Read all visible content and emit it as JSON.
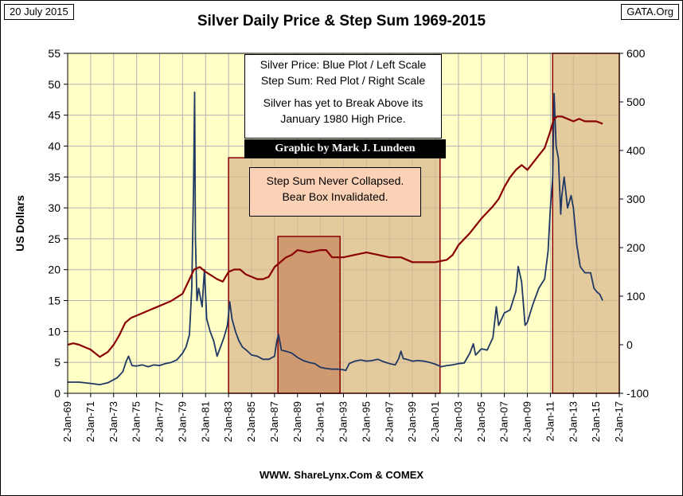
{
  "header": {
    "date_label": "20 July 2015",
    "source_label": "GATA.Org",
    "title": "Silver Daily Price & Step Sum 1969-2015"
  },
  "notes": {
    "legend_line1": "Silver Price: Blue Plot / Left Scale",
    "legend_line2": "Step Sum: Red Plot / Right Scale",
    "comment_line1": "Silver has yet to Break Above its",
    "comment_line2": "January 1980 High Price.",
    "credit": "Graphic by Mark J. Lundeen",
    "step_line1": "Step Sum Never Collapsed.",
    "step_line2": "Bear Box Invalidated."
  },
  "footer": {
    "source": "WWW. ShareLynx.Com & COMEX"
  },
  "colors": {
    "plot_bg": "#ffffc6",
    "grid": "#b4b4b4",
    "price": "#1f3864",
    "stepsum": "#8b0000",
    "bear_box_fill": "#d9b98f",
    "bear_box_edge": "#8b0000",
    "inner_box_fill": "#c98a63"
  },
  "chart_data": {
    "type": "line",
    "title": "Silver Daily Price & Step Sum 1969-2015",
    "xlabel": "",
    "ylabel": "US Dollars",
    "xlim": [
      1969,
      2017
    ],
    "ylim": [
      0,
      55
    ],
    "y2lim": [
      -100,
      600
    ],
    "y_ticks": [
      "0",
      "5",
      "10",
      "15",
      "20",
      "25",
      "30",
      "35",
      "40",
      "45",
      "50",
      "55"
    ],
    "y2_ticks": [
      "-100",
      "0",
      "100",
      "200",
      "300",
      "400",
      "500",
      "600"
    ],
    "x_ticks": [
      "2-Jan-69",
      "2-Jan-71",
      "2-Jan-73",
      "2-Jan-75",
      "2-Jan-77",
      "2-Jan-79",
      "2-Jan-81",
      "2-Jan-83",
      "2-Jan-85",
      "2-Jan-87",
      "2-Jan-89",
      "2-Jan-91",
      "2-Jan-93",
      "2-Jan-95",
      "2-Jan-97",
      "2-Jan-99",
      "2-Jan-01",
      "2-Jan-03",
      "2-Jan-05",
      "2-Jan-07",
      "2-Jan-09",
      "2-Jan-11",
      "2-Jan-13",
      "2-Jan-15",
      "2-Jan-17"
    ],
    "grid": true,
    "bear_boxes": [
      {
        "x_start": 1983.0,
        "x_end": 2001.4,
        "y2_top": 385
      },
      {
        "x_start": 2011.2,
        "x_end": 2017.0,
        "y2_top": 600
      }
    ],
    "inner_box": {
      "x_start": 1987.3,
      "x_end": 1992.7,
      "y2_top": 223
    },
    "series": [
      {
        "name": "Silver Price",
        "axis": "left",
        "color": "#1f3864",
        "x": [
          1969.0,
          1970.0,
          1971.0,
          1971.8,
          1972.5,
          1973.3,
          1973.8,
          1974.1,
          1974.3,
          1974.6,
          1975.0,
          1975.5,
          1976.0,
          1976.5,
          1977.0,
          1977.5,
          1978.0,
          1978.5,
          1979.0,
          1979.3,
          1979.6,
          1979.8,
          1979.95,
          1980.05,
          1980.12,
          1980.25,
          1980.4,
          1980.7,
          1980.9,
          1981.1,
          1981.4,
          1981.7,
          1982.0,
          1982.3,
          1982.6,
          1982.9,
          1983.1,
          1983.3,
          1983.6,
          1983.9,
          1984.2,
          1984.6,
          1985.0,
          1985.5,
          1986.0,
          1986.5,
          1987.0,
          1987.2,
          1987.35,
          1987.6,
          1988.0,
          1988.5,
          1989.0,
          1989.5,
          1990.0,
          1990.5,
          1991.0,
          1991.5,
          1992.0,
          1992.5,
          1993.0,
          1993.2,
          1993.5,
          1994.0,
          1994.5,
          1995.0,
          1995.5,
          1996.0,
          1996.5,
          1997.0,
          1997.5,
          1997.8,
          1998.0,
          1998.2,
          1998.5,
          1999.0,
          1999.5,
          2000.0,
          2000.5,
          2001.0,
          2001.5,
          2002.0,
          2002.5,
          2003.0,
          2003.5,
          2004.0,
          2004.3,
          2004.5,
          2005.0,
          2005.5,
          2006.0,
          2006.3,
          2006.5,
          2007.0,
          2007.5,
          2008.0,
          2008.2,
          2008.5,
          2008.8,
          2009.0,
          2009.5,
          2010.0,
          2010.5,
          2010.8,
          2011.0,
          2011.2,
          2011.33,
          2011.5,
          2011.7,
          2011.9,
          2012.0,
          2012.2,
          2012.5,
          2012.8,
          2013.0,
          2013.3,
          2013.6,
          2014.0,
          2014.5,
          2014.8,
          2015.0,
          2015.3,
          2015.55
        ],
        "values": [
          1.8,
          1.8,
          1.6,
          1.4,
          1.7,
          2.5,
          3.5,
          5.2,
          6.0,
          4.5,
          4.4,
          4.6,
          4.3,
          4.6,
          4.5,
          4.8,
          5.0,
          5.4,
          6.5,
          7.5,
          9.5,
          17,
          33,
          48.7,
          25,
          15,
          17,
          14,
          20,
          12,
          10,
          8.5,
          6,
          7.5,
          9,
          11,
          14.8,
          12,
          10,
          8.5,
          7.5,
          6.9,
          6.2,
          6.0,
          5.5,
          5.5,
          6.0,
          8.5,
          9.5,
          7.0,
          6.8,
          6.5,
          5.8,
          5.3,
          5.0,
          4.8,
          4.2,
          4.0,
          3.9,
          3.9,
          3.8,
          3.7,
          4.8,
          5.2,
          5.4,
          5.2,
          5.3,
          5.5,
          5.1,
          4.8,
          4.6,
          5.6,
          6.8,
          5.6,
          5.5,
          5.2,
          5.3,
          5.2,
          5.0,
          4.7,
          4.3,
          4.5,
          4.6,
          4.8,
          4.9,
          6.5,
          8.0,
          6.2,
          7.2,
          7.0,
          9.0,
          14,
          11,
          13,
          13.5,
          16.5,
          20.5,
          18,
          11,
          11.5,
          14.5,
          17,
          18.5,
          23,
          30,
          35,
          48.5,
          40,
          38,
          29,
          32,
          35,
          30,
          32,
          30,
          24,
          20.5,
          19.5,
          19.5,
          17,
          16.5,
          16.0,
          15.0
        ]
      },
      {
        "name": "Step Sum",
        "axis": "right",
        "color": "#8b0000",
        "x": [
          1969.0,
          1969.5,
          1970.0,
          1970.5,
          1971.0,
          1971.8,
          1972.5,
          1973.0,
          1973.5,
          1974.0,
          1974.5,
          1975.0,
          1975.5,
          1976.0,
          1977.0,
          1978.0,
          1979.0,
          1979.5,
          1980.0,
          1980.5,
          1981.0,
          1982.0,
          1982.5,
          1983.0,
          1983.5,
          1984.0,
          1984.5,
          1985.0,
          1985.5,
          1986.0,
          1986.5,
          1987.0,
          1988.0,
          1988.5,
          1989.0,
          1990.0,
          1991.0,
          1991.5,
          1992.0,
          1993.0,
          1994.0,
          1995.0,
          1996.0,
          1997.0,
          1998.0,
          1999.0,
          2000.0,
          2001.0,
          2002.0,
          2002.5,
          2003.0,
          2004.0,
          2005.0,
          2006.0,
          2006.5,
          2007.0,
          2007.5,
          2008.0,
          2008.5,
          2009.0,
          2009.5,
          2010.0,
          2010.5,
          2011.0,
          2011.3,
          2011.6,
          2012.0,
          2012.5,
          2013.0,
          2013.5,
          2014.0,
          2014.5,
          2015.0,
          2015.55
        ],
        "values": [
          0,
          3,
          0,
          -5,
          -10,
          -25,
          -15,
          0,
          20,
          45,
          55,
          60,
          65,
          70,
          80,
          90,
          105,
          130,
          155,
          160,
          150,
          135,
          130,
          150,
          155,
          155,
          145,
          140,
          135,
          135,
          140,
          160,
          180,
          185,
          195,
          190,
          195,
          195,
          180,
          180,
          185,
          190,
          185,
          180,
          180,
          170,
          170,
          170,
          175,
          185,
          205,
          230,
          260,
          285,
          300,
          325,
          345,
          360,
          370,
          360,
          375,
          390,
          405,
          440,
          465,
          470,
          470,
          465,
          460,
          465,
          460,
          460,
          460,
          455
        ]
      }
    ]
  }
}
